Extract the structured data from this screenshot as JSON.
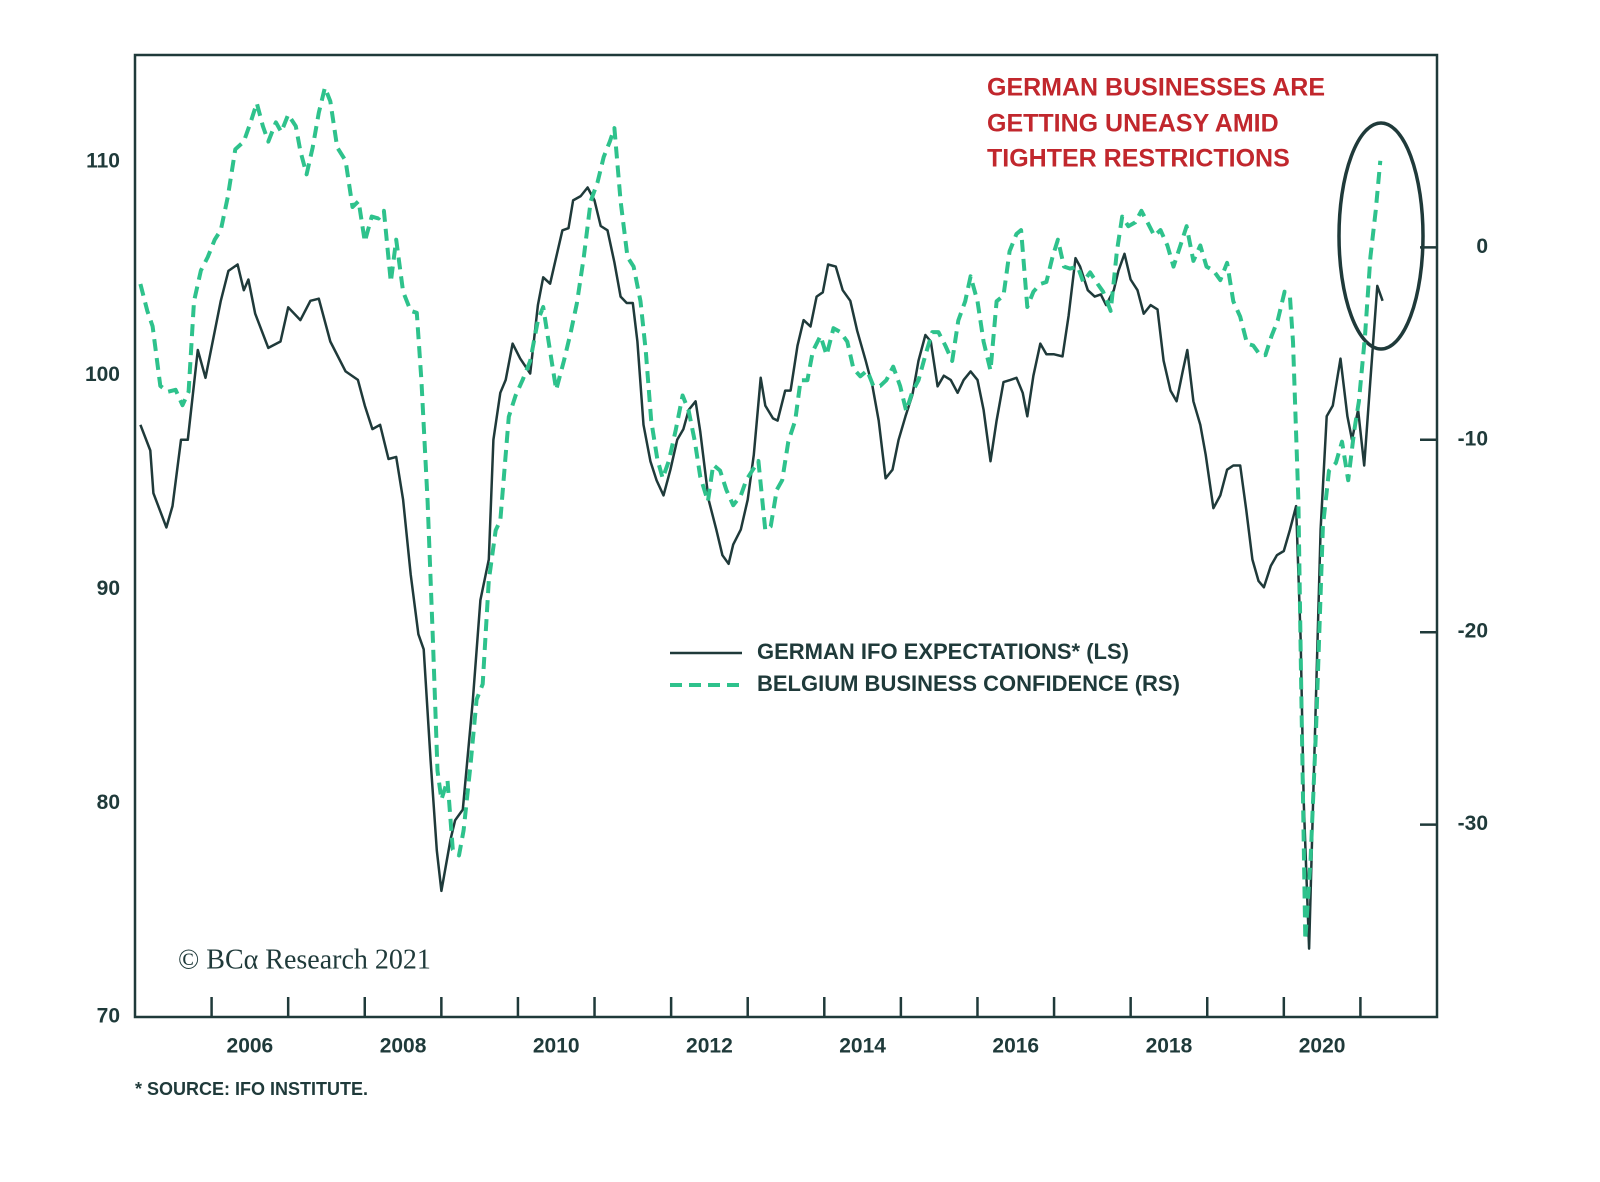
{
  "chart_data": {
    "type": "line",
    "annotation": [
      "GERMAN BUSINESSES ARE",
      "GETTING UNEASY AMID",
      "TIGHTER RESTRICTIONS"
    ],
    "watermark": "© BCα Research 2021",
    "source": "* SOURCE: IFO INSTITUTE.",
    "legend": "center",
    "xlim": [
      2005,
      2022
    ],
    "xticks": [
      2006,
      2007,
      2008,
      2009,
      2010,
      2011,
      2012,
      2013,
      2014,
      2015,
      2016,
      2017,
      2018,
      2019,
      2020,
      2021
    ],
    "xtick_labels": [
      {
        "value": 2006.5,
        "label": "2006"
      },
      {
        "value": 2008.5,
        "label": "2008"
      },
      {
        "value": 2010.5,
        "label": "2010"
      },
      {
        "value": 2012.5,
        "label": "2012"
      },
      {
        "value": 2014.5,
        "label": "2014"
      },
      {
        "value": 2016.5,
        "label": "2016"
      },
      {
        "value": 2018.5,
        "label": "2018"
      },
      {
        "value": 2020.5,
        "label": "2020"
      }
    ],
    "ylim": [
      70,
      115
    ],
    "yticks": [
      70,
      80,
      90,
      100,
      110
    ],
    "y2lim": [
      -40,
      10
    ],
    "y2ticks": [
      -30,
      -20,
      -10,
      0
    ],
    "series": [
      {
        "name": "GERMAN IFO EXPECTATIONS* (LS)",
        "color": "#1f3a3a",
        "dashed": false,
        "x": [
          2005.07,
          2005.2,
          2005.24,
          2005.41,
          2005.49,
          2005.6,
          2005.69,
          2005.82,
          2005.92,
          2006.12,
          2006.22,
          2006.34,
          2006.42,
          2006.48,
          2006.57,
          2006.74,
          2006.9,
          2007.0,
          2007.16,
          2007.29,
          2007.4,
          2007.55,
          2007.75,
          2007.91,
          2008.0,
          2008.1,
          2008.2,
          2008.31,
          2008.41,
          2008.5,
          2008.6,
          2008.7,
          2008.77,
          2008.86,
          2008.94,
          2009.0,
          2009.12,
          2009.18,
          2009.28,
          2009.41,
          2009.51,
          2009.62,
          2009.68,
          2009.77,
          2009.84,
          2009.93,
          2010.03,
          2010.16,
          2010.26,
          2010.33,
          2010.42,
          2010.49,
          2010.58,
          2010.66,
          2010.72,
          2010.82,
          2010.91,
          2011.0,
          2011.08,
          2011.17,
          2011.26,
          2011.34,
          2011.42,
          2011.5,
          2011.56,
          2011.64,
          2011.73,
          2011.81,
          2011.9,
          2011.99,
          2012.08,
          2012.16,
          2012.23,
          2012.32,
          2012.38,
          2012.49,
          2012.59,
          2012.67,
          2012.75,
          2012.81,
          2012.91,
          2013.0,
          2013.08,
          2013.17,
          2013.23,
          2013.33,
          2013.39,
          2013.49,
          2013.56,
          2013.65,
          2013.73,
          2013.82,
          2013.9,
          2013.98,
          2014.05,
          2014.15,
          2014.24,
          2014.34,
          2014.43,
          2014.54,
          2014.63,
          2014.71,
          2014.8,
          2014.89,
          2014.97,
          2015.06,
          2015.15,
          2015.23,
          2015.32,
          2015.39,
          2015.48,
          2015.56,
          2015.65,
          2015.74,
          2015.82,
          2015.91,
          2016.0,
          2016.08,
          2016.17,
          2016.25,
          2016.34,
          2016.43,
          2016.51,
          2016.59,
          2016.65,
          2016.73,
          2016.82,
          2016.9,
          2017.0,
          2017.11,
          2017.19,
          2017.28,
          2017.34,
          2017.44,
          2017.53,
          2017.61,
          2017.68,
          2017.78,
          2017.84,
          2017.92,
          2018.0,
          2018.09,
          2018.17,
          2018.26,
          2018.35,
          2018.43,
          2018.52,
          2018.6,
          2018.68,
          2018.74,
          2018.82,
          2018.91,
          2018.98,
          2019.08,
          2019.17,
          2019.26,
          2019.34,
          2019.43,
          2019.51,
          2019.59,
          2019.67,
          2019.74,
          2019.83,
          2019.91,
          2020.0,
          2020.08,
          2020.16,
          2020.22,
          2020.26,
          2020.33,
          2020.39,
          2020.48,
          2020.56,
          2020.64,
          2020.74,
          2020.83,
          2020.89,
          2020.97,
          2021.05,
          2021.13,
          2021.22,
          2021.29
        ],
        "values": [
          97.7,
          96.5,
          94.5,
          92.9,
          93.9,
          97.0,
          97.0,
          101.2,
          99.9,
          103.5,
          104.9,
          105.2,
          104.0,
          104.5,
          102.9,
          101.3,
          101.6,
          103.2,
          102.6,
          103.5,
          103.6,
          101.6,
          100.2,
          99.8,
          98.6,
          97.5,
          97.7,
          96.1,
          96.2,
          94.2,
          90.7,
          87.9,
          87.2,
          82.0,
          77.8,
          75.9,
          78.3,
          79.2,
          79.7,
          84.8,
          89.5,
          91.4,
          97.0,
          99.2,
          99.8,
          101.5,
          100.8,
          100.1,
          103.3,
          104.6,
          104.3,
          105.4,
          106.8,
          106.9,
          108.2,
          108.4,
          108.8,
          108.2,
          107.0,
          106.8,
          105.3,
          103.7,
          103.4,
          103.4,
          101.6,
          97.7,
          96.0,
          95.1,
          94.4,
          95.6,
          97.0,
          97.5,
          98.4,
          98.8,
          97.4,
          94.2,
          92.8,
          91.6,
          91.2,
          92.1,
          92.8,
          94.2,
          96.3,
          99.9,
          98.6,
          98.0,
          97.9,
          99.3,
          99.3,
          101.4,
          102.6,
          102.3,
          103.7,
          103.9,
          105.2,
          105.1,
          104.0,
          103.5,
          102.1,
          100.7,
          99.5,
          97.9,
          95.2,
          95.6,
          97.0,
          98.1,
          99.1,
          100.7,
          101.9,
          101.6,
          99.5,
          100.0,
          99.8,
          99.2,
          99.8,
          100.2,
          99.8,
          98.4,
          96.0,
          97.9,
          99.7,
          99.8,
          99.9,
          99.2,
          98.1,
          100.0,
          101.5,
          101.0,
          101.0,
          100.9,
          102.8,
          105.5,
          105.1,
          104.0,
          103.7,
          103.8,
          103.3,
          104.0,
          104.9,
          105.7,
          104.5,
          104.0,
          102.9,
          103.3,
          103.1,
          100.7,
          99.3,
          98.8,
          100.2,
          101.2,
          98.8,
          97.7,
          96.3,
          93.8,
          94.4,
          95.6,
          95.8,
          95.8,
          93.7,
          91.4,
          90.4,
          90.1,
          91.1,
          91.6,
          91.8,
          92.8,
          93.9,
          87.6,
          80.1,
          73.2,
          81.1,
          92.8,
          98.1,
          98.6,
          100.8,
          98.1,
          97.0,
          98.4,
          95.8,
          99.8,
          104.2,
          103.5
        ]
      },
      {
        "name": "BELGIUM BUSINESS CONFIDENCE (RS)",
        "color": "#2ec28c",
        "dashed": true,
        "axis": "y2",
        "x": [
          2005.07,
          2005.16,
          2005.23,
          2005.33,
          2005.43,
          2005.53,
          2005.62,
          2005.7,
          2005.77,
          2005.86,
          2005.95,
          2006.04,
          2006.12,
          2006.21,
          2006.31,
          2006.42,
          2006.51,
          2006.59,
          2006.67,
          2006.74,
          2006.84,
          2006.91,
          2007.0,
          2007.1,
          2007.16,
          2007.24,
          2007.32,
          2007.4,
          2007.48,
          2007.55,
          2007.64,
          2007.75,
          2007.84,
          2007.92,
          2008.0,
          2008.09,
          2008.18,
          2008.25,
          2008.34,
          2008.41,
          2008.5,
          2008.6,
          2008.68,
          2008.74,
          2008.82,
          2008.89,
          2008.95,
          2009.0,
          2009.08,
          2009.15,
          2009.23,
          2009.29,
          2009.38,
          2009.46,
          2009.54,
          2009.62,
          2009.71,
          2009.77,
          2009.88,
          2009.97,
          2010.06,
          2010.16,
          2010.26,
          2010.33,
          2010.42,
          2010.5,
          2010.6,
          2010.69,
          2010.77,
          2010.86,
          2010.95,
          2011.04,
          2011.12,
          2011.2,
          2011.26,
          2011.34,
          2011.43,
          2011.51,
          2011.6,
          2011.67,
          2011.74,
          2011.82,
          2011.89,
          2011.97,
          2012.06,
          2012.15,
          2012.23,
          2012.31,
          2012.38,
          2012.48,
          2012.55,
          2012.64,
          2012.72,
          2012.81,
          2012.91,
          2012.98,
          2013.06,
          2013.14,
          2013.23,
          2013.3,
          2013.38,
          2013.45,
          2013.53,
          2013.62,
          2013.69,
          2013.78,
          2013.85,
          2013.95,
          2014.03,
          2014.12,
          2014.21,
          2014.3,
          2014.38,
          2014.47,
          2014.56,
          2014.64,
          2014.73,
          2014.81,
          2014.9,
          2014.99,
          2015.07,
          2015.15,
          2015.23,
          2015.32,
          2015.41,
          2015.49,
          2015.58,
          2015.67,
          2015.75,
          2015.84,
          2015.91,
          2016.0,
          2016.08,
          2016.17,
          2016.25,
          2016.34,
          2016.42,
          2016.51,
          2016.57,
          2016.65,
          2016.73,
          2016.82,
          2016.9,
          2016.98,
          2017.05,
          2017.13,
          2017.21,
          2017.31,
          2017.38,
          2017.47,
          2017.57,
          2017.64,
          2017.74,
          2017.82,
          2017.89,
          2017.97,
          2018.06,
          2018.14,
          2018.22,
          2018.31,
          2018.39,
          2018.48,
          2018.56,
          2018.65,
          2018.73,
          2018.82,
          2018.91,
          2018.99,
          2019.08,
          2019.17,
          2019.26,
          2019.34,
          2019.43,
          2019.52,
          2019.6,
          2019.69,
          2019.76,
          2019.84,
          2019.92,
          2020.01,
          2020.08,
          2020.12,
          2020.19,
          2020.23,
          2020.28,
          2020.35,
          2020.42,
          2020.51,
          2020.59,
          2020.68,
          2020.76,
          2020.84,
          2020.92,
          2020.98,
          2021.06,
          2021.13,
          2021.2,
          2021.26
        ],
        "values": [
          -1.9,
          -3.3,
          -4.1,
          -7.2,
          -7.5,
          -7.4,
          -8.2,
          -7.5,
          -2.8,
          -1.2,
          -0.5,
          0.4,
          0.9,
          2.6,
          5.1,
          5.5,
          6.5,
          7.5,
          6.3,
          5.5,
          6.5,
          6.0,
          6.9,
          6.3,
          5.0,
          3.8,
          5.2,
          7.0,
          8.3,
          7.6,
          5.2,
          4.5,
          2.1,
          2.4,
          0.3,
          1.6,
          1.5,
          1.9,
          -1.8,
          0.4,
          -2.3,
          -3.3,
          -3.4,
          -6.9,
          -13.2,
          -20.4,
          -27.2,
          -28.7,
          -27.7,
          -31.3,
          -31.6,
          -30.3,
          -26.9,
          -23.5,
          -22.7,
          -17.3,
          -14.7,
          -14.2,
          -8.8,
          -7.7,
          -6.9,
          -5.9,
          -3.8,
          -3.1,
          -5.4,
          -7.4,
          -5.9,
          -4.4,
          -2.9,
          -0.5,
          2.4,
          3.4,
          4.7,
          5.5,
          6.2,
          2.4,
          -0.5,
          -1.0,
          -2.8,
          -5.4,
          -9.0,
          -11.0,
          -12.0,
          -11.1,
          -9.5,
          -7.7,
          -8.5,
          -10.1,
          -11.9,
          -13.2,
          -11.3,
          -11.6,
          -12.6,
          -13.4,
          -12.9,
          -12.1,
          -11.6,
          -11.1,
          -14.7,
          -14.5,
          -12.6,
          -12.1,
          -10.1,
          -9.0,
          -6.9,
          -6.9,
          -5.4,
          -4.6,
          -5.6,
          -4.2,
          -4.4,
          -4.9,
          -6.3,
          -6.7,
          -6.4,
          -7.2,
          -7.2,
          -6.9,
          -6.2,
          -7.2,
          -8.5,
          -7.5,
          -6.9,
          -5.6,
          -4.4,
          -4.4,
          -5.1,
          -5.9,
          -3.8,
          -2.8,
          -1.5,
          -2.8,
          -4.9,
          -6.4,
          -2.8,
          -2.5,
          -0.2,
          0.7,
          0.9,
          -3.1,
          -2.3,
          -1.9,
          -1.8,
          -0.5,
          0.4,
          -1.0,
          -1.1,
          -1.0,
          -1.8,
          -1.3,
          -1.9,
          -2.3,
          -3.3,
          -0.2,
          1.6,
          1.1,
          1.3,
          1.9,
          1.3,
          0.6,
          0.9,
          0.1,
          -1.0,
          0.1,
          1.1,
          -0.7,
          0.1,
          -1.0,
          -1.2,
          -1.7,
          -0.8,
          -2.8,
          -3.6,
          -5.0,
          -5.1,
          -5.6,
          -5.6,
          -4.6,
          -3.8,
          -2.3,
          -2.6,
          -4.9,
          -13.2,
          -23.5,
          -36.0,
          -31.8,
          -25.1,
          -14.5,
          -11.6,
          -11.2,
          -10.1,
          -12.1,
          -9.5,
          -8.0,
          -4.6,
          -0.5,
          1.9,
          4.5
        ]
      }
    ]
  }
}
